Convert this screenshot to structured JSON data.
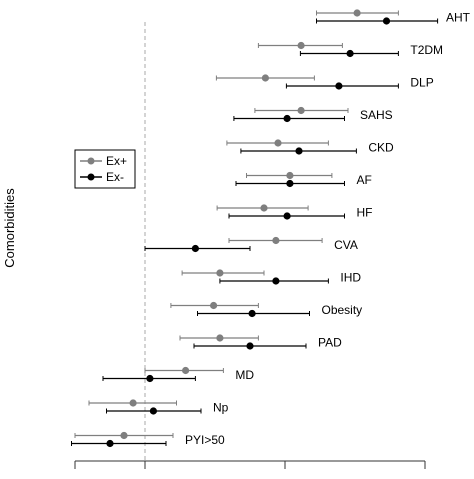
{
  "chart_data": {
    "type": "forest",
    "ylabel": "Comorbidities",
    "xlabel": "",
    "xlim": [
      -1.0,
      4.0
    ],
    "x_ticks": [
      -1.0,
      0.0,
      2.0,
      4.0
    ],
    "reference_line": 0.0,
    "grid": false,
    "legend": {
      "position": "left-middle",
      "entries": [
        "Ex+",
        "Ex-"
      ]
    },
    "series": [
      {
        "name": "Ex+",
        "color": "#7f7f7f"
      },
      {
        "name": "Ex-",
        "color": "#000000"
      }
    ],
    "categories": [
      "AHT",
      "T2DM",
      "DLP",
      "SAHS",
      "CKD",
      "AF",
      "HF",
      "CVA",
      "IHD",
      "Obesity",
      "PAD",
      "MD",
      "Np",
      "PYI>50"
    ],
    "rows": [
      {
        "label": "AHT",
        "ex_plus": {
          "est": 3.03,
          "lo": 2.45,
          "hi": 3.62
        },
        "ex_minus": {
          "est": 3.45,
          "lo": 2.45,
          "hi": 4.18
        }
      },
      {
        "label": "T2DM",
        "ex_plus": {
          "est": 2.23,
          "lo": 1.62,
          "hi": 2.82
        },
        "ex_minus": {
          "est": 2.93,
          "lo": 2.22,
          "hi": 3.62
        }
      },
      {
        "label": "DLP",
        "ex_plus": {
          "est": 1.72,
          "lo": 1.02,
          "hi": 2.42
        },
        "ex_minus": {
          "est": 2.77,
          "lo": 2.02,
          "hi": 3.62
        }
      },
      {
        "label": "SAHS",
        "ex_plus": {
          "est": 2.23,
          "lo": 1.57,
          "hi": 2.9
        },
        "ex_minus": {
          "est": 2.03,
          "lo": 1.27,
          "hi": 2.85
        }
      },
      {
        "label": "CKD",
        "ex_plus": {
          "est": 1.9,
          "lo": 1.17,
          "hi": 2.62
        },
        "ex_minus": {
          "est": 2.2,
          "lo": 1.37,
          "hi": 3.02
        }
      },
      {
        "label": "AF",
        "ex_plus": {
          "est": 2.07,
          "lo": 1.45,
          "hi": 2.67
        },
        "ex_minus": {
          "est": 2.07,
          "lo": 1.3,
          "hi": 2.85
        }
      },
      {
        "label": "HF",
        "ex_plus": {
          "est": 1.7,
          "lo": 1.03,
          "hi": 2.33
        },
        "ex_minus": {
          "est": 2.03,
          "lo": 1.2,
          "hi": 2.85
        }
      },
      {
        "label": "CVA",
        "ex_plus": {
          "est": 1.87,
          "lo": 1.2,
          "hi": 2.53
        },
        "ex_minus": {
          "est": 0.72,
          "lo": 0.0,
          "hi": 1.5
        }
      },
      {
        "label": "IHD",
        "ex_plus": {
          "est": 1.07,
          "lo": 0.53,
          "hi": 1.7
        },
        "ex_minus": {
          "est": 1.87,
          "lo": 1.07,
          "hi": 2.62
        }
      },
      {
        "label": "Obesity",
        "ex_plus": {
          "est": 0.98,
          "lo": 0.37,
          "hi": 1.62
        },
        "ex_minus": {
          "est": 1.53,
          "lo": 0.75,
          "hi": 2.35
        }
      },
      {
        "label": "PAD",
        "ex_plus": {
          "est": 1.07,
          "lo": 0.5,
          "hi": 1.62
        },
        "ex_minus": {
          "est": 1.5,
          "lo": 0.7,
          "hi": 2.3
        }
      },
      {
        "label": "MD",
        "ex_plus": {
          "est": 0.58,
          "lo": 0.0,
          "hi": 1.12
        },
        "ex_minus": {
          "est": 0.07,
          "lo": -0.6,
          "hi": 0.72
        }
      },
      {
        "label": "Np",
        "ex_plus": {
          "est": -0.17,
          "lo": -0.8,
          "hi": 0.45
        },
        "ex_minus": {
          "est": 0.12,
          "lo": -0.55,
          "hi": 0.8
        }
      },
      {
        "label": "PYI>50",
        "ex_plus": {
          "est": -0.3,
          "lo": -1.0,
          "hi": 0.4
        },
        "ex_minus": {
          "est": -0.5,
          "lo": -1.05,
          "hi": 0.3
        }
      }
    ]
  }
}
